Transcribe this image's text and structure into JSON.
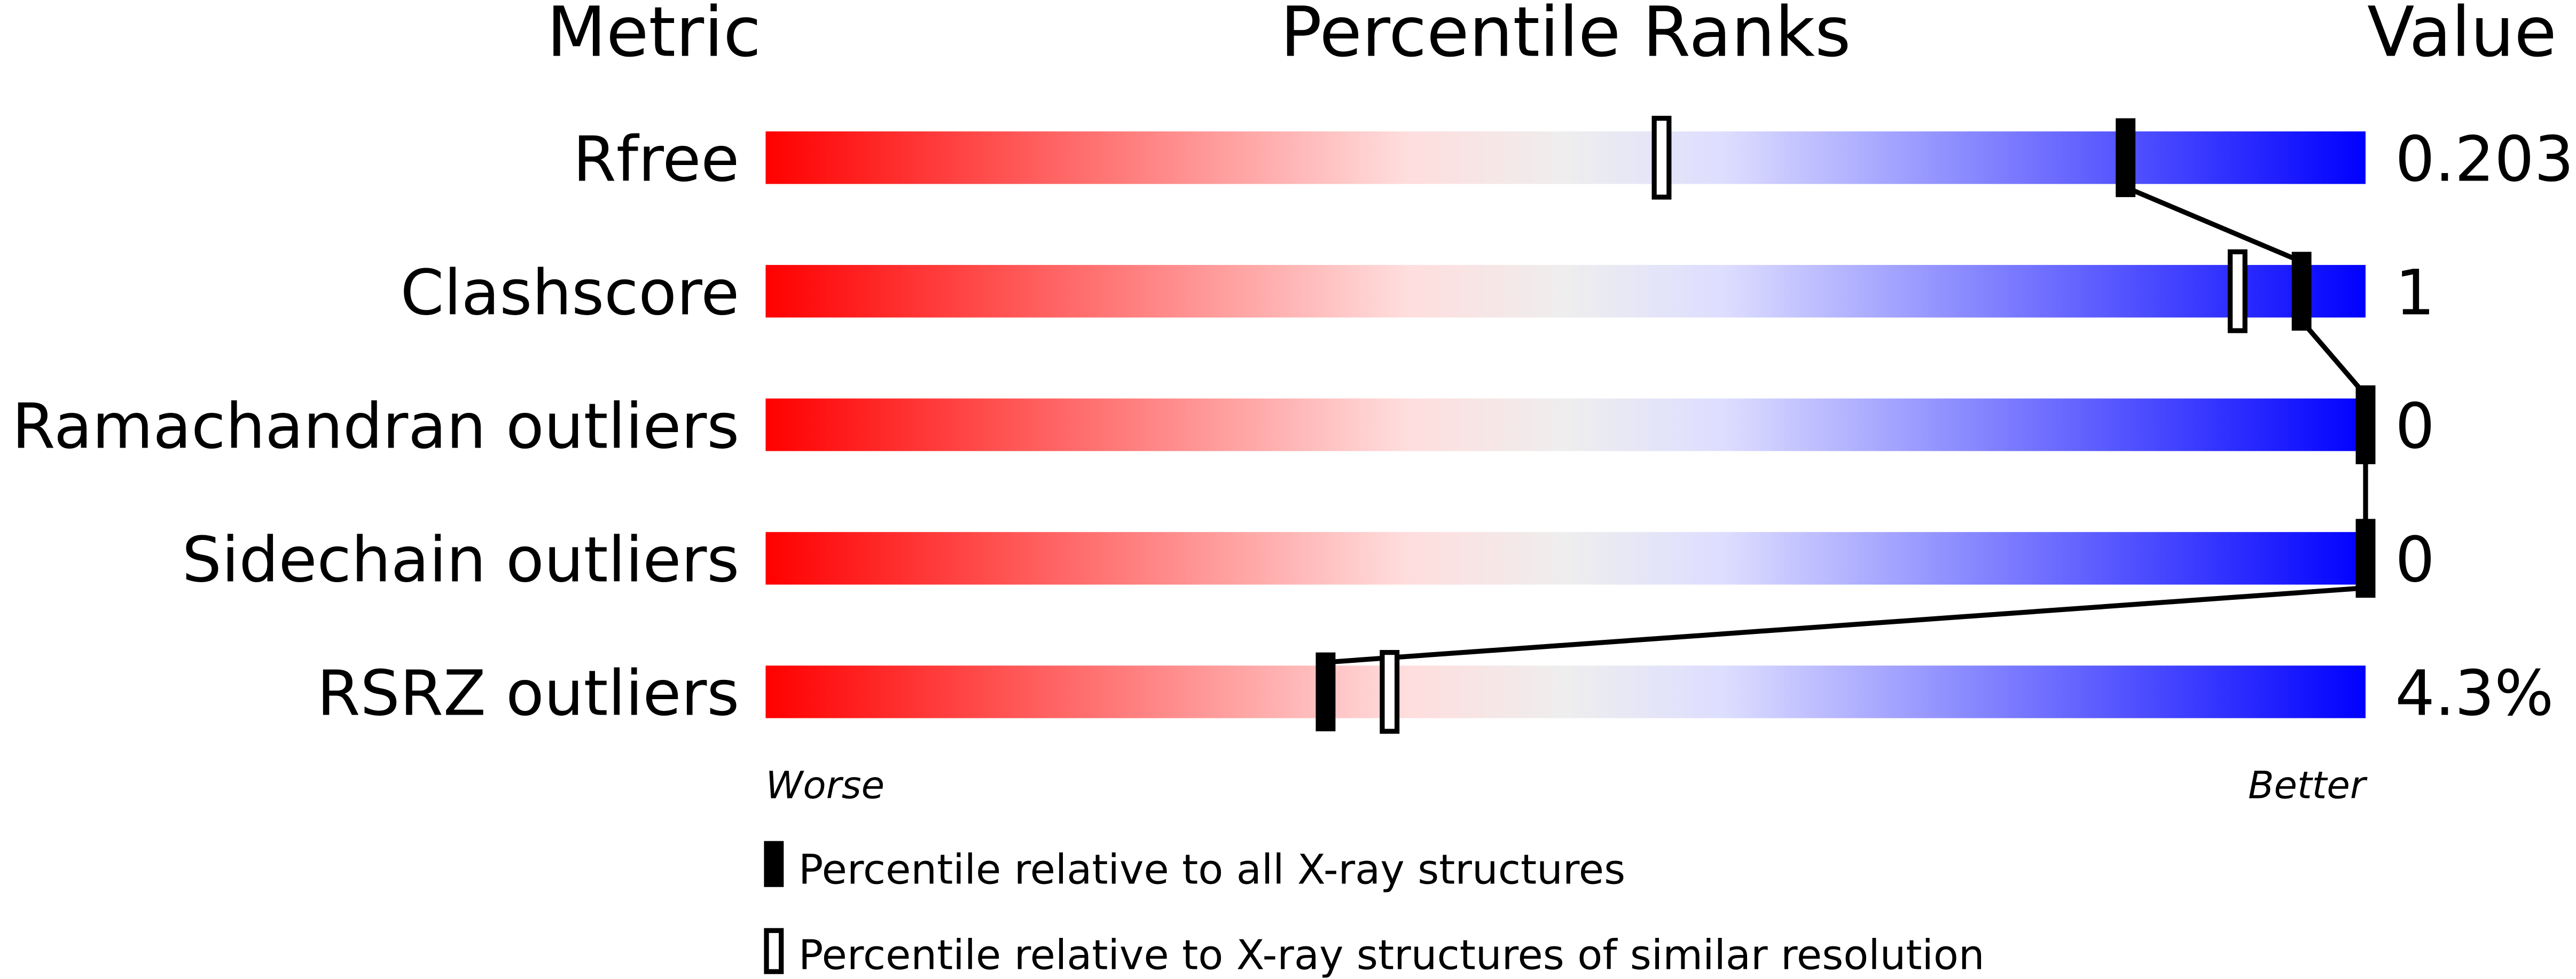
{
  "chart_data": {
    "type": "percentile-bar",
    "headers": {
      "metric": "Metric",
      "percentile": "Percentile Ranks",
      "value": "Value"
    },
    "xlim": [
      0,
      100
    ],
    "axis_labels": {
      "worse": "Worse",
      "better": "Better"
    },
    "metrics": [
      {
        "name": "Rfree",
        "value": "0.203",
        "percentile_all": 85,
        "percentile_similar": 56
      },
      {
        "name": "Clashscore",
        "value": "1",
        "percentile_all": 96,
        "percentile_similar": 92
      },
      {
        "name": "Ramachandran outliers",
        "value": "0",
        "percentile_all": 100,
        "percentile_similar": null
      },
      {
        "name": "Sidechain outliers",
        "value": "0",
        "percentile_all": 100,
        "percentile_similar": null
      },
      {
        "name": "RSRZ outliers",
        "value": "4.3%",
        "percentile_all": 35,
        "percentile_similar": 39
      }
    ],
    "legend": {
      "all": "Percentile relative to all X-ray structures",
      "similar": "Percentile relative to X-ray structures of similar resolution"
    },
    "colors": {
      "worse": "#ff0000",
      "mid_low": "#ffdddd",
      "mid": "#eeeeee",
      "mid_high": "#ddddff",
      "better": "#0000ff",
      "marker": "#000000"
    }
  }
}
